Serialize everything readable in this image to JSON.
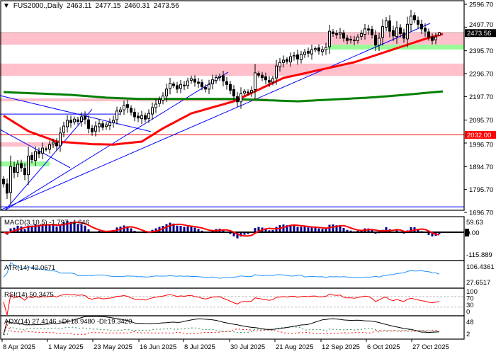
{
  "header": {
    "menu_icon": "triangle-down-icon",
    "symbol_timeframe": "FUS2000.,Daily",
    "open": "2463.11",
    "high": "2477.15",
    "low": "2460.31",
    "close": "2473.56"
  },
  "price_axis": {
    "labels": [
      "2596.70",
      "2497.70",
      "2395.70",
      "2296.70",
      "2197.70",
      "2095.70",
      "1996.70",
      "1894.70",
      "1795.70",
      "1696.70"
    ],
    "current_price": "2473.56",
    "level_label": "2032.00"
  },
  "indicators": {
    "macd": {
      "label": "MACD(3,10,5) -1.797 -4.646",
      "axis": [
        "59.63",
        "0.00",
        "-115.889"
      ]
    },
    "atr": {
      "label": "ATR(14) 42.0671",
      "axis": [
        "106.4361",
        "27.6517"
      ]
    },
    "rsi": {
      "label": "RSI(14) 50.3475",
      "axis": [
        "100",
        "70",
        "30",
        "0"
      ],
      "levels": [
        70,
        30
      ]
    },
    "adx": {
      "label": "ADX(14) 27.4146 +DI:18.9480 -DI:19.3420",
      "axis": [
        "48",
        "2"
      ]
    }
  },
  "x_axis": {
    "labels": [
      "8 Apr 2025",
      "1 May 2025",
      "23 May 2025",
      "16 Jun 2025",
      "8 Jul 2025",
      "30 Jul 2025",
      "21 Aug 2025",
      "12 Sep 2025",
      "6 Oct 2025",
      "27 Oct 2025"
    ]
  },
  "colors": {
    "macd_hist": "#00008b",
    "signal": "#ff0000",
    "fast_ma": "#ff0000",
    "slow_ma": "#008000",
    "trendline": "#0000ff",
    "resistance_zone": "#ffc0cb",
    "support_zone": "#98fb98",
    "atr": "#1e90ff",
    "level_line": "#ff0000",
    "plus_di": "#2e8b57",
    "minus_di": "#ff0000",
    "adx": "#000000"
  },
  "chart_data": {
    "type": "candlestick",
    "symbol": "FUS2000.",
    "timeframe": "Daily",
    "ylim": [
      1696.7,
      2596.7
    ],
    "closes": [
      1820,
      1780,
      1895,
      1870,
      1905,
      1890,
      1860,
      1940,
      1925,
      1960,
      1950,
      1975,
      1970,
      1990,
      2000,
      1985,
      2040,
      2070,
      2095,
      2085,
      2100,
      2090,
      2110,
      2100,
      2060,
      2045,
      2070,
      2080,
      2065,
      2075,
      2085,
      2095,
      2135,
      2140,
      2160,
      2150,
      2130,
      2110,
      2105,
      2115,
      2100,
      2125,
      2150,
      2165,
      2185,
      2200,
      2230,
      2255,
      2245,
      2230,
      2250,
      2245,
      2265,
      2275,
      2260,
      2255,
      2240,
      2230,
      2250,
      2270,
      2280,
      2285,
      2265,
      2250,
      2225,
      2200,
      2175,
      2210,
      2220,
      2215,
      2225,
      2300,
      2290,
      2280,
      2270,
      2260,
      2275,
      2330,
      2345,
      2355,
      2350,
      2370,
      2375,
      2360,
      2380,
      2390,
      2385,
      2400,
      2405,
      2395,
      2400,
      2410,
      2480,
      2470,
      2465,
      2475,
      2450,
      2440,
      2445,
      2440,
      2455,
      2470,
      2490,
      2485,
      2465,
      2420,
      2450,
      2500,
      2525,
      2480,
      2460,
      2495,
      2470,
      2450,
      2510,
      2545,
      2530,
      2510,
      2490,
      2480,
      2455,
      2440,
      2455,
      2463.11
    ],
    "last_bar": {
      "open": 2463.11,
      "high": 2477.15,
      "low": 2460.31,
      "close": 2473.56
    },
    "fast_ma": [
      [
        0,
        2115
      ],
      [
        7,
        2048
      ],
      [
        15,
        2003
      ],
      [
        25,
        1992
      ],
      [
        31,
        1990
      ],
      [
        39,
        2003
      ],
      [
        45,
        2060
      ],
      [
        53,
        2125
      ],
      [
        65,
        2177
      ],
      [
        79,
        2278
      ],
      [
        99,
        2346
      ],
      [
        119,
        2447
      ],
      [
        124,
        2468
      ]
    ],
    "slow_ma": [
      [
        0,
        2217
      ],
      [
        19,
        2205
      ],
      [
        29,
        2193
      ],
      [
        39,
        2187
      ],
      [
        65,
        2187
      ],
      [
        83,
        2177
      ],
      [
        93,
        2185
      ],
      [
        103,
        2193
      ],
      [
        111,
        2202
      ],
      [
        124,
        2220
      ]
    ],
    "zones": [
      {
        "type": "resistance",
        "from": 2422,
        "to": 2477,
        "start": -1,
        "end": 131
      },
      {
        "type": "support",
        "from": 2401,
        "to": 2422,
        "start": 91.6,
        "end": 131
      },
      {
        "type": "resistance",
        "from": 2287,
        "to": 2340,
        "start": -1,
        "end": 131
      },
      {
        "type": "resistance",
        "from": 2177,
        "to": 2190,
        "start": -1,
        "end": 74.6
      },
      {
        "type": "resistance",
        "from": 1981,
        "to": 2000,
        "start": -1,
        "end": 15.6
      },
      {
        "type": "support",
        "from": 1896,
        "to": 1917,
        "start": -1,
        "end": 13
      }
    ],
    "horizontal_levels": [
      {
        "price": 2032,
        "color": "level",
        "start": -1,
        "end": 131
      },
      {
        "price": 2122,
        "color": "trend",
        "start": -1,
        "end": 33
      },
      {
        "price": 1721,
        "color": "trend",
        "start": -1,
        "end": 131
      }
    ],
    "trendlines": [
      [
        [
          0.4,
          1706
        ],
        [
          25,
          2143
        ]
      ],
      [
        [
          0.4,
          1706
        ],
        [
          63.4,
          2303
        ]
      ],
      [
        [
          -1,
          1706
        ],
        [
          120.4,
          2514
        ]
      ],
      [
        [
          -1,
          2202
        ],
        [
          41.6,
          2046
        ]
      ],
      [
        [
          -1,
          2055
        ],
        [
          18.8,
          1890
        ]
      ]
    ]
  }
}
